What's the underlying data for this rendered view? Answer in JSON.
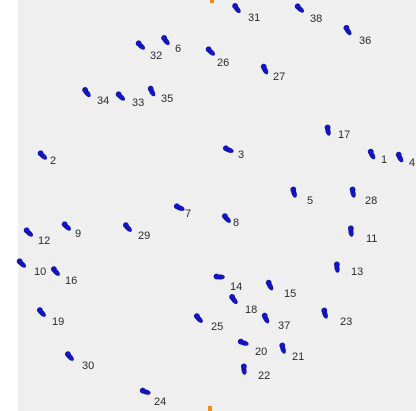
{
  "colors": {
    "panel": "#efefef",
    "marker": "#1515c8",
    "accent": "#f08a1c"
  },
  "points": [
    {
      "label": "1"
    },
    {
      "label": "2"
    },
    {
      "label": "3"
    },
    {
      "label": "4"
    },
    {
      "label": "5"
    },
    {
      "label": "6"
    },
    {
      "label": "7"
    },
    {
      "label": "8"
    },
    {
      "label": "9"
    },
    {
      "label": "10"
    },
    {
      "label": "11"
    },
    {
      "label": "12"
    },
    {
      "label": "13"
    },
    {
      "label": "14"
    },
    {
      "label": "15"
    },
    {
      "label": "16"
    },
    {
      "label": "17"
    },
    {
      "label": "18"
    },
    {
      "label": "19"
    },
    {
      "label": "20"
    },
    {
      "label": "21"
    },
    {
      "label": "22"
    },
    {
      "label": "23"
    },
    {
      "label": "24"
    },
    {
      "label": "25"
    },
    {
      "label": "26"
    },
    {
      "label": "27"
    },
    {
      "label": "28"
    },
    {
      "label": "29"
    },
    {
      "label": "30"
    },
    {
      "label": "31"
    },
    {
      "label": "32"
    },
    {
      "label": "33"
    },
    {
      "label": "34"
    },
    {
      "label": "35"
    },
    {
      "label": "36"
    },
    {
      "label": "37"
    },
    {
      "label": "38"
    }
  ]
}
